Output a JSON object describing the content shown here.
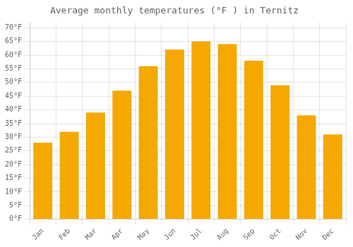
{
  "chart_data": {
    "type": "bar",
    "title": "Average monthly temperatures (°F ) in Ternitz",
    "categories": [
      "Jan",
      "Feb",
      "Mar",
      "Apr",
      "May",
      "Jun",
      "Jul",
      "Aug",
      "Sep",
      "Oct",
      "Nov",
      "Dec"
    ],
    "values": [
      28,
      32,
      39,
      47,
      56,
      62,
      65,
      64,
      58,
      49,
      38,
      31
    ],
    "color": "#F5A800",
    "ylim": [
      0,
      72
    ],
    "yticks": [
      {
        "value": 0,
        "label": "0°F"
      },
      {
        "value": 5,
        "label": "5°F"
      },
      {
        "value": 10,
        "label": "10°F"
      },
      {
        "value": 15,
        "label": "15°F"
      },
      {
        "value": 20,
        "label": "20°F"
      },
      {
        "value": 25,
        "label": "25°F"
      },
      {
        "value": 30,
        "label": "30°F"
      },
      {
        "value": 35,
        "label": "35°F"
      },
      {
        "value": 40,
        "label": "40°F"
      },
      {
        "value": 45,
        "label": "45°F"
      },
      {
        "value": 50,
        "label": "50°F"
      },
      {
        "value": 55,
        "label": "55°F"
      },
      {
        "value": 60,
        "label": "60°F"
      },
      {
        "value": 65,
        "label": "65°F"
      },
      {
        "value": 70,
        "label": "70°F"
      }
    ],
    "grid": true
  }
}
